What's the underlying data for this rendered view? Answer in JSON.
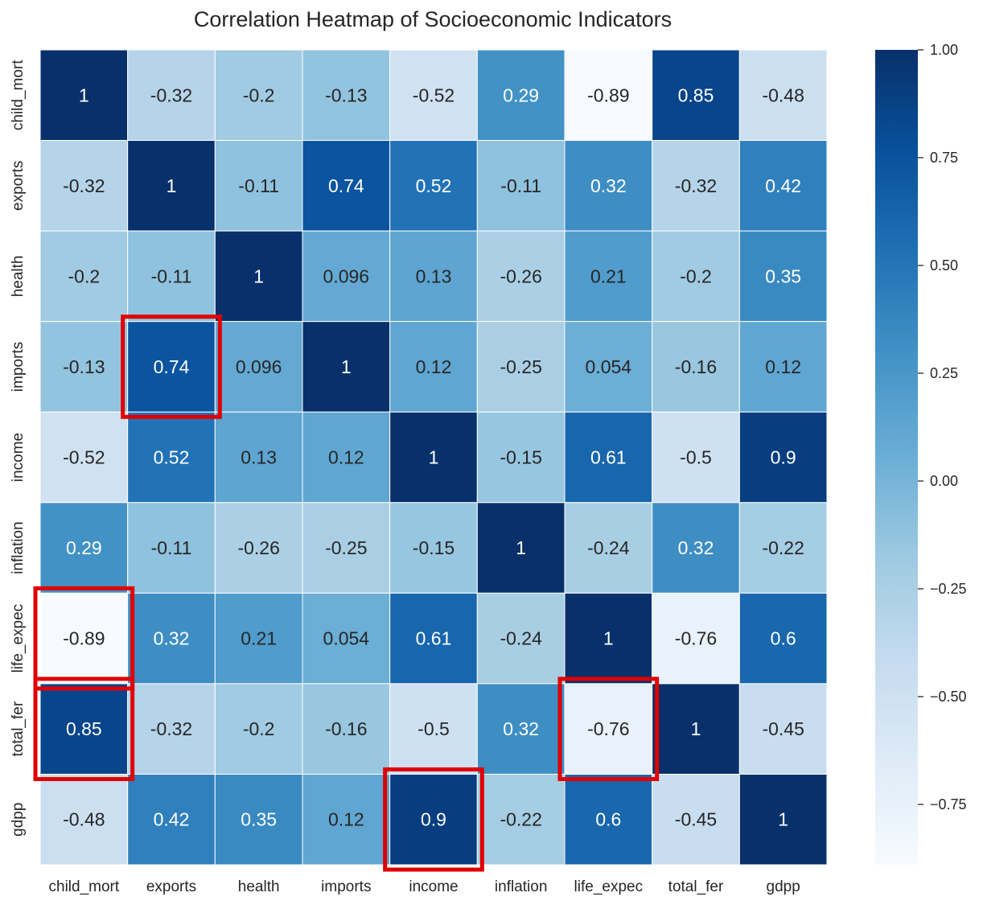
{
  "chart_data": {
    "type": "heatmap",
    "title": "Correlation Heatmap of Socioeconomic Indicators",
    "xlabel": "",
    "ylabel": "",
    "labels": [
      "child_mort",
      "exports",
      "health",
      "imports",
      "income",
      "inflation",
      "life_expec",
      "total_fer",
      "gdpp"
    ],
    "cell_labels": [
      [
        "1",
        "-0.32",
        "-0.2",
        "-0.13",
        "-0.52",
        "0.29",
        "-0.89",
        "0.85",
        "-0.48"
      ],
      [
        "-0.32",
        "1",
        "-0.11",
        "0.74",
        "0.52",
        "-0.11",
        "0.32",
        "-0.32",
        "0.42"
      ],
      [
        "-0.2",
        "-0.11",
        "1",
        "0.096",
        "0.13",
        "-0.26",
        "0.21",
        "-0.2",
        "0.35"
      ],
      [
        "-0.13",
        "0.74",
        "0.096",
        "1",
        "0.12",
        "-0.25",
        "0.054",
        "-0.16",
        "0.12"
      ],
      [
        "-0.52",
        "0.52",
        "0.13",
        "0.12",
        "1",
        "-0.15",
        "0.61",
        "-0.5",
        "0.9"
      ],
      [
        "0.29",
        "-0.11",
        "-0.26",
        "-0.25",
        "-0.15",
        "1",
        "-0.24",
        "0.32",
        "-0.22"
      ],
      [
        "-0.89",
        "0.32",
        "0.21",
        "0.054",
        "0.61",
        "-0.24",
        "1",
        "-0.76",
        "0.6"
      ],
      [
        "0.85",
        "-0.32",
        "-0.2",
        "-0.16",
        "-0.5",
        "0.32",
        "-0.76",
        "1",
        "-0.45"
      ],
      [
        "-0.48",
        "0.42",
        "0.35",
        "0.12",
        "0.9",
        "-0.22",
        "0.6",
        "-0.45",
        "1"
      ]
    ],
    "values": [
      [
        1,
        -0.32,
        -0.2,
        -0.13,
        -0.52,
        0.29,
        -0.89,
        0.85,
        -0.48
      ],
      [
        -0.32,
        1,
        -0.11,
        0.74,
        0.52,
        -0.11,
        0.32,
        -0.32,
        0.42
      ],
      [
        -0.2,
        -0.11,
        1,
        0.096,
        0.13,
        -0.26,
        0.21,
        -0.2,
        0.35
      ],
      [
        -0.13,
        0.74,
        0.096,
        1,
        0.12,
        -0.25,
        0.054,
        -0.16,
        0.12
      ],
      [
        -0.52,
        0.52,
        0.13,
        0.12,
        1,
        -0.15,
        0.61,
        -0.5,
        0.9
      ],
      [
        0.29,
        -0.11,
        -0.26,
        -0.25,
        -0.15,
        1,
        -0.24,
        0.32,
        -0.22
      ],
      [
        -0.89,
        0.32,
        0.21,
        0.054,
        0.61,
        -0.24,
        1,
        -0.76,
        0.6
      ],
      [
        0.85,
        -0.32,
        -0.2,
        -0.16,
        -0.5,
        0.32,
        -0.76,
        1,
        -0.45
      ],
      [
        -0.48,
        0.42,
        0.35,
        0.12,
        0.9,
        -0.22,
        0.6,
        -0.45,
        1
      ]
    ],
    "vmin": -0.89,
    "vmax": 1.0,
    "colormap": "Blues",
    "colorbar": {
      "ticks": [
        1.0,
        0.75,
        0.5,
        0.25,
        0.0,
        -0.25,
        -0.5,
        -0.75
      ],
      "tick_labels": [
        "1.00",
        "0.75",
        "0.50",
        "0.25",
        "0.00",
        "−0.25",
        "−0.50",
        "−0.75"
      ]
    },
    "highlighted_cells": [
      {
        "row": 3,
        "col": 1
      },
      {
        "row": 6,
        "col": 0
      },
      {
        "row": 7,
        "col": 0
      },
      {
        "row": 7,
        "col": 6
      },
      {
        "row": 8,
        "col": 4
      }
    ],
    "highlight_color": "#e00000",
    "grid_line_color": "#ffffff"
  }
}
